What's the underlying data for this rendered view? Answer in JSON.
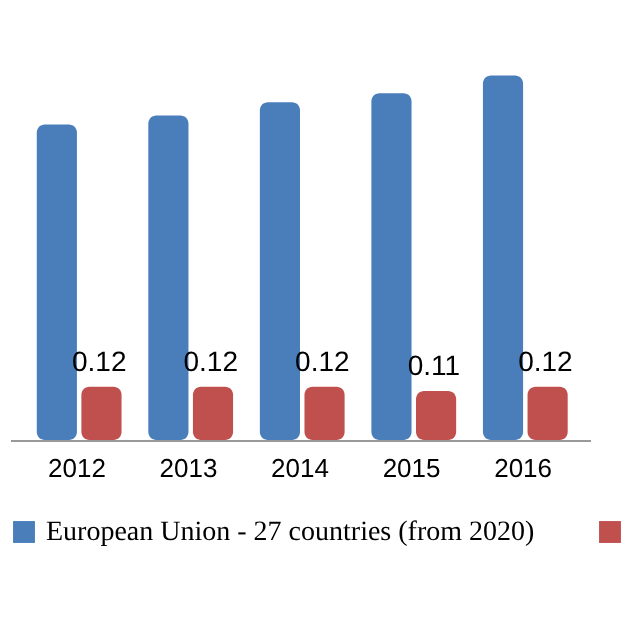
{
  "chart_data": {
    "type": "bar",
    "categories": [
      "2012",
      "2013",
      "2014",
      "2015",
      "2016"
    ],
    "series": [
      {
        "name": "European Union - 27 countries (from 2020)",
        "color": "#4a7ebb",
        "values": [
          0.71,
          0.73,
          0.76,
          0.78,
          0.82
        ]
      },
      {
        "color": "#c0504d",
        "values": [
          0.12,
          0.12,
          0.12,
          0.11,
          0.12
        ],
        "value_labels": [
          "0.12",
          "0.12",
          "0.12",
          "0.11",
          "0.12"
        ]
      }
    ],
    "legend": "bottom"
  }
}
